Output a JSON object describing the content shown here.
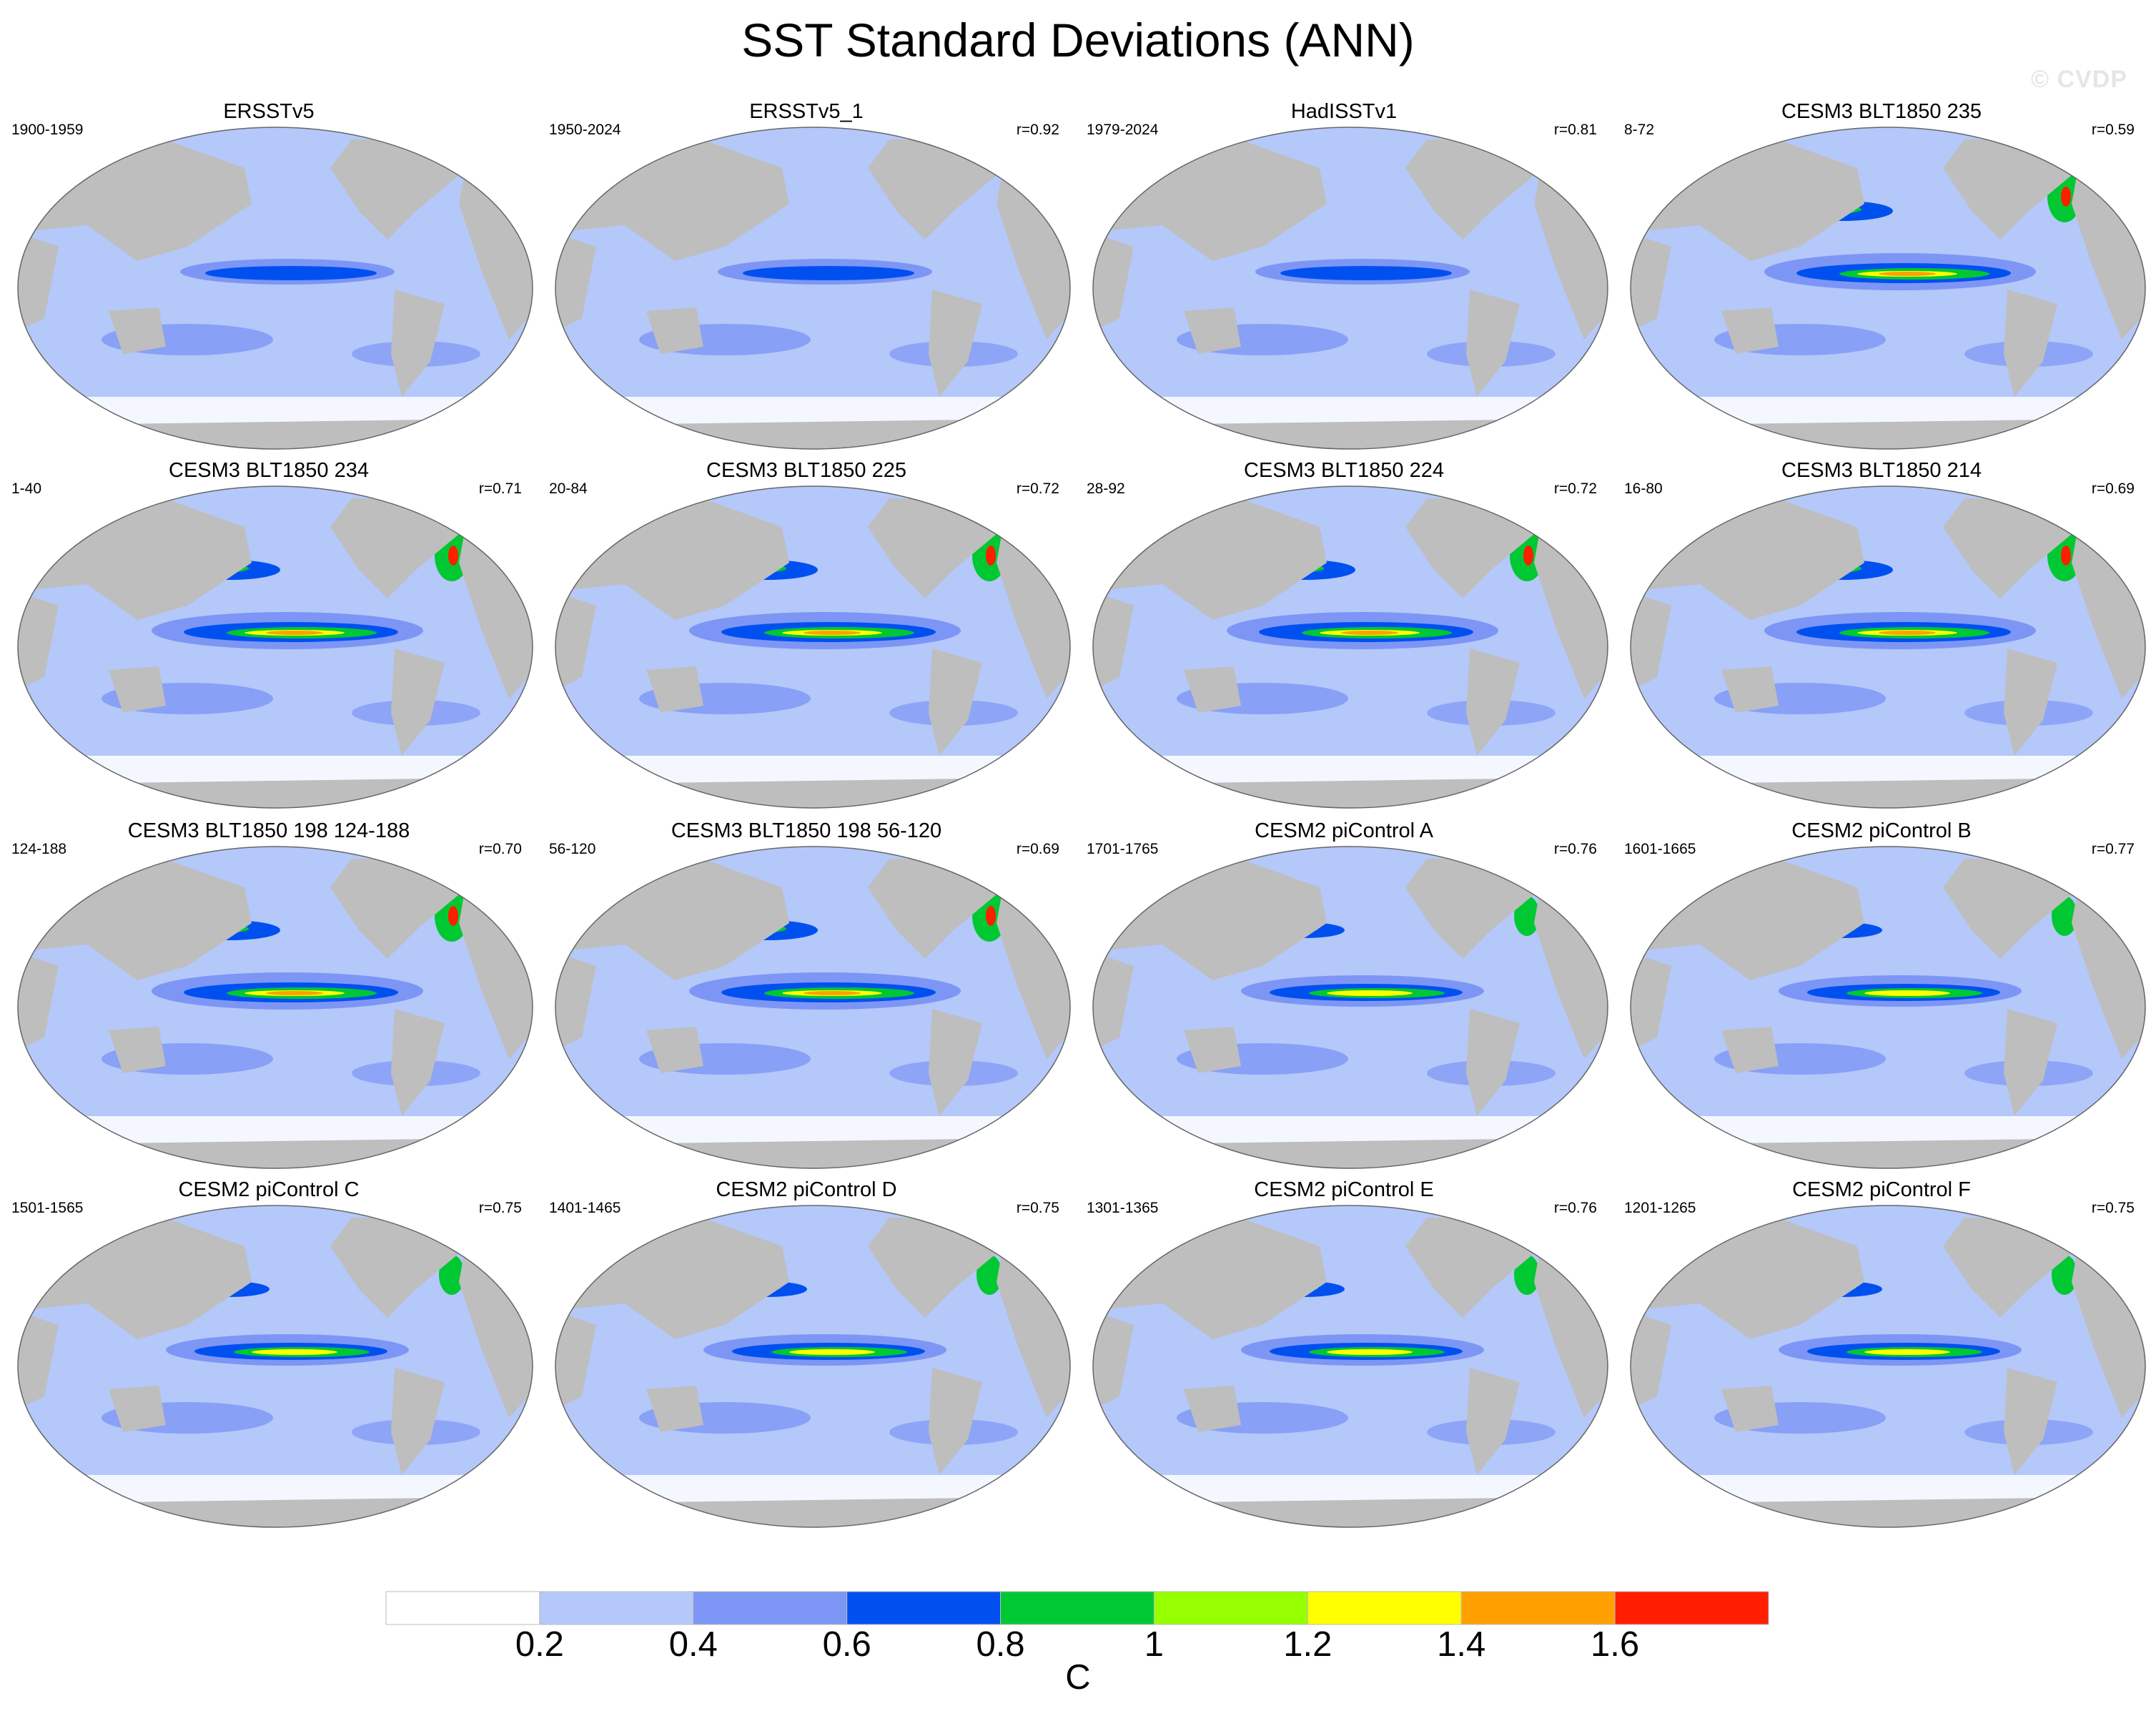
{
  "title": "SST Standard Deviations (ANN)",
  "watermark": "© CVDP",
  "panels": [
    {
      "name": "ERSSTv5",
      "years": "1900-1959",
      "r": ""
    },
    {
      "name": "ERSSTv5_1",
      "years": "1950-2024",
      "r": "r=0.92"
    },
    {
      "name": "HadISSTv1",
      "years": "1979-2024",
      "r": "r=0.81"
    },
    {
      "name": "CESM3 BLT1850 235",
      "years": "8-72",
      "r": "r=0.59"
    },
    {
      "name": "CESM3 BLT1850 234",
      "years": "1-40",
      "r": "r=0.71"
    },
    {
      "name": "CESM3 BLT1850 225",
      "years": "20-84",
      "r": "r=0.72"
    },
    {
      "name": "CESM3 BLT1850 224",
      "years": "28-92",
      "r": "r=0.72"
    },
    {
      "name": "CESM3 BLT1850 214",
      "years": "16-80",
      "r": "r=0.69"
    },
    {
      "name": "CESM3 BLT1850 198 124-188",
      "years": "124-188",
      "r": "r=0.70"
    },
    {
      "name": "CESM3 BLT1850 198 56-120",
      "years": "56-120",
      "r": "r=0.69"
    },
    {
      "name": "CESM2 piControl A",
      "years": "1701-1765",
      "r": "r=0.76"
    },
    {
      "name": "CESM2 piControl B",
      "years": "1601-1665",
      "r": "r=0.77"
    },
    {
      "name": "CESM2 piControl C",
      "years": "1501-1565",
      "r": "r=0.75"
    },
    {
      "name": "CESM2 piControl D",
      "years": "1401-1465",
      "r": "r=0.75"
    },
    {
      "name": "CESM2 piControl E",
      "years": "1301-1365",
      "r": "r=0.76"
    },
    {
      "name": "CESM2 piControl F",
      "years": "1201-1265",
      "r": "r=0.75"
    }
  ],
  "colorbar": {
    "unit": "C",
    "labels": [
      "0.2",
      "0.4",
      "0.6",
      "0.8",
      "1",
      "1.2",
      "1.4",
      "1.6"
    ],
    "colors": [
      "#ffffff",
      "#b4c8fa",
      "#7d96f5",
      "#0050f0",
      "#00c832",
      "#96ff00",
      "#ffff00",
      "#ffa000",
      "#ff1e00"
    ]
  },
  "colors": {
    "land": "#bebebe",
    "ocean_base": "#b4c8fa",
    "ice": "#ffffff"
  }
}
